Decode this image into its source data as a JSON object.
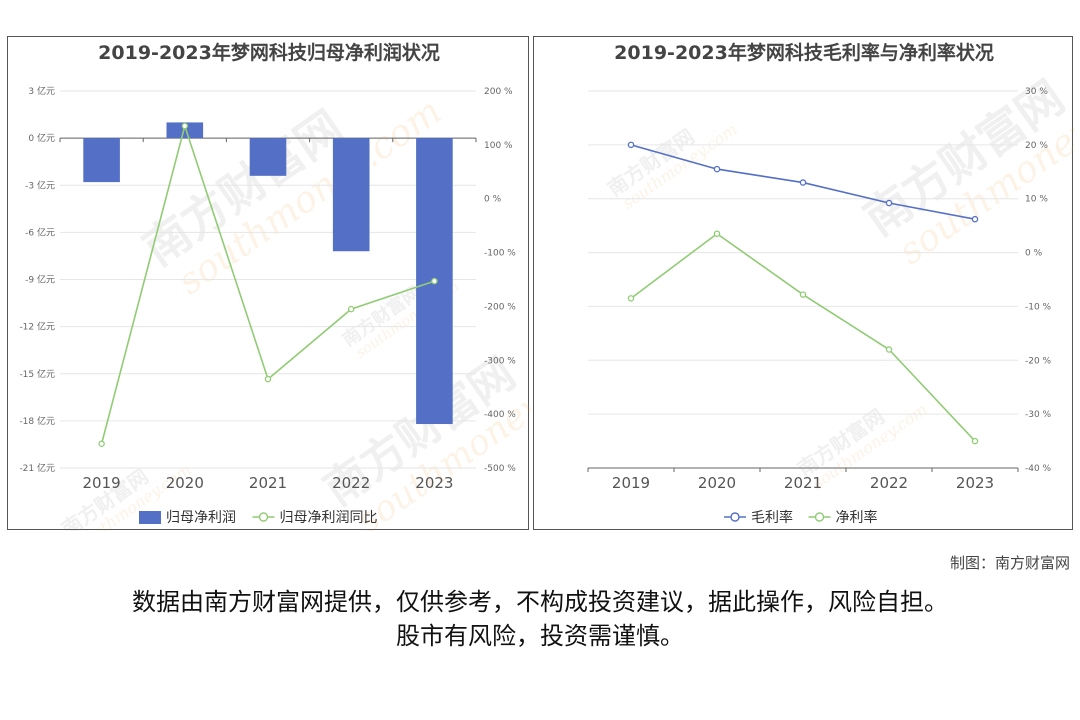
{
  "chart_data": [
    {
      "type": "bar+line",
      "title": "2019-2023年梦网科技归母净利润状况",
      "categories": [
        "2019",
        "2020",
        "2021",
        "2022",
        "2023"
      ],
      "y_left": {
        "ticks": [
          "3 亿元",
          "0 亿元",
          "-3 亿元",
          "-6 亿元",
          "-9 亿元",
          "-12 亿元",
          "-15 亿元",
          "-18 亿元",
          "-21 亿元"
        ],
        "range": [
          -21,
          3
        ]
      },
      "y_right": {
        "ticks": [
          "200 %",
          "100 %",
          "0 %",
          "-100 %",
          "-200 %",
          "-300 %",
          "-400 %",
          "-500 %"
        ],
        "range": [
          -500,
          200
        ]
      },
      "series": [
        {
          "name": "归母净利润",
          "type": "bar",
          "axis": "left",
          "color": "#5470c6",
          "values": [
            -2.8,
            1.0,
            -2.4,
            -7.2,
            -18.2
          ]
        },
        {
          "name": "归母净利润同比",
          "type": "line",
          "axis": "right",
          "color": "#91cc75",
          "values": [
            -455,
            135,
            -335,
            -205,
            -153
          ]
        }
      ],
      "legend": "bottom-center",
      "grid": true
    },
    {
      "type": "line",
      "title": "2019-2023年梦网科技毛利率与净利率状况",
      "categories": [
        "2019",
        "2020",
        "2021",
        "2022",
        "2023"
      ],
      "y_right": {
        "ticks": [
          "30 %",
          "20 %",
          "10 %",
          "0 %",
          "-10 %",
          "-20 %",
          "-30 %",
          "-40 %"
        ],
        "range": [
          -40,
          30
        ]
      },
      "series": [
        {
          "name": "毛利率",
          "type": "line",
          "axis": "right",
          "color": "#5470c6",
          "values": [
            20,
            15.5,
            13,
            9.2,
            6.2
          ]
        },
        {
          "name": "净利率",
          "type": "line",
          "axis": "right",
          "color": "#91cc75",
          "values": [
            -8.5,
            3.5,
            -7.8,
            -18,
            -35
          ]
        }
      ],
      "legend": "bottom-center",
      "grid": true
    }
  ],
  "credit": "制图：南方财富网",
  "disclaimer_line1": "数据由南方财富网提供，仅供参考，不构成投资建议，据此操作，风险自担。",
  "disclaimer_line2": "股市有风险，投资需谨慎。",
  "watermark": {
    "brand": "南方财富网",
    "domain": "southmoney.com"
  }
}
